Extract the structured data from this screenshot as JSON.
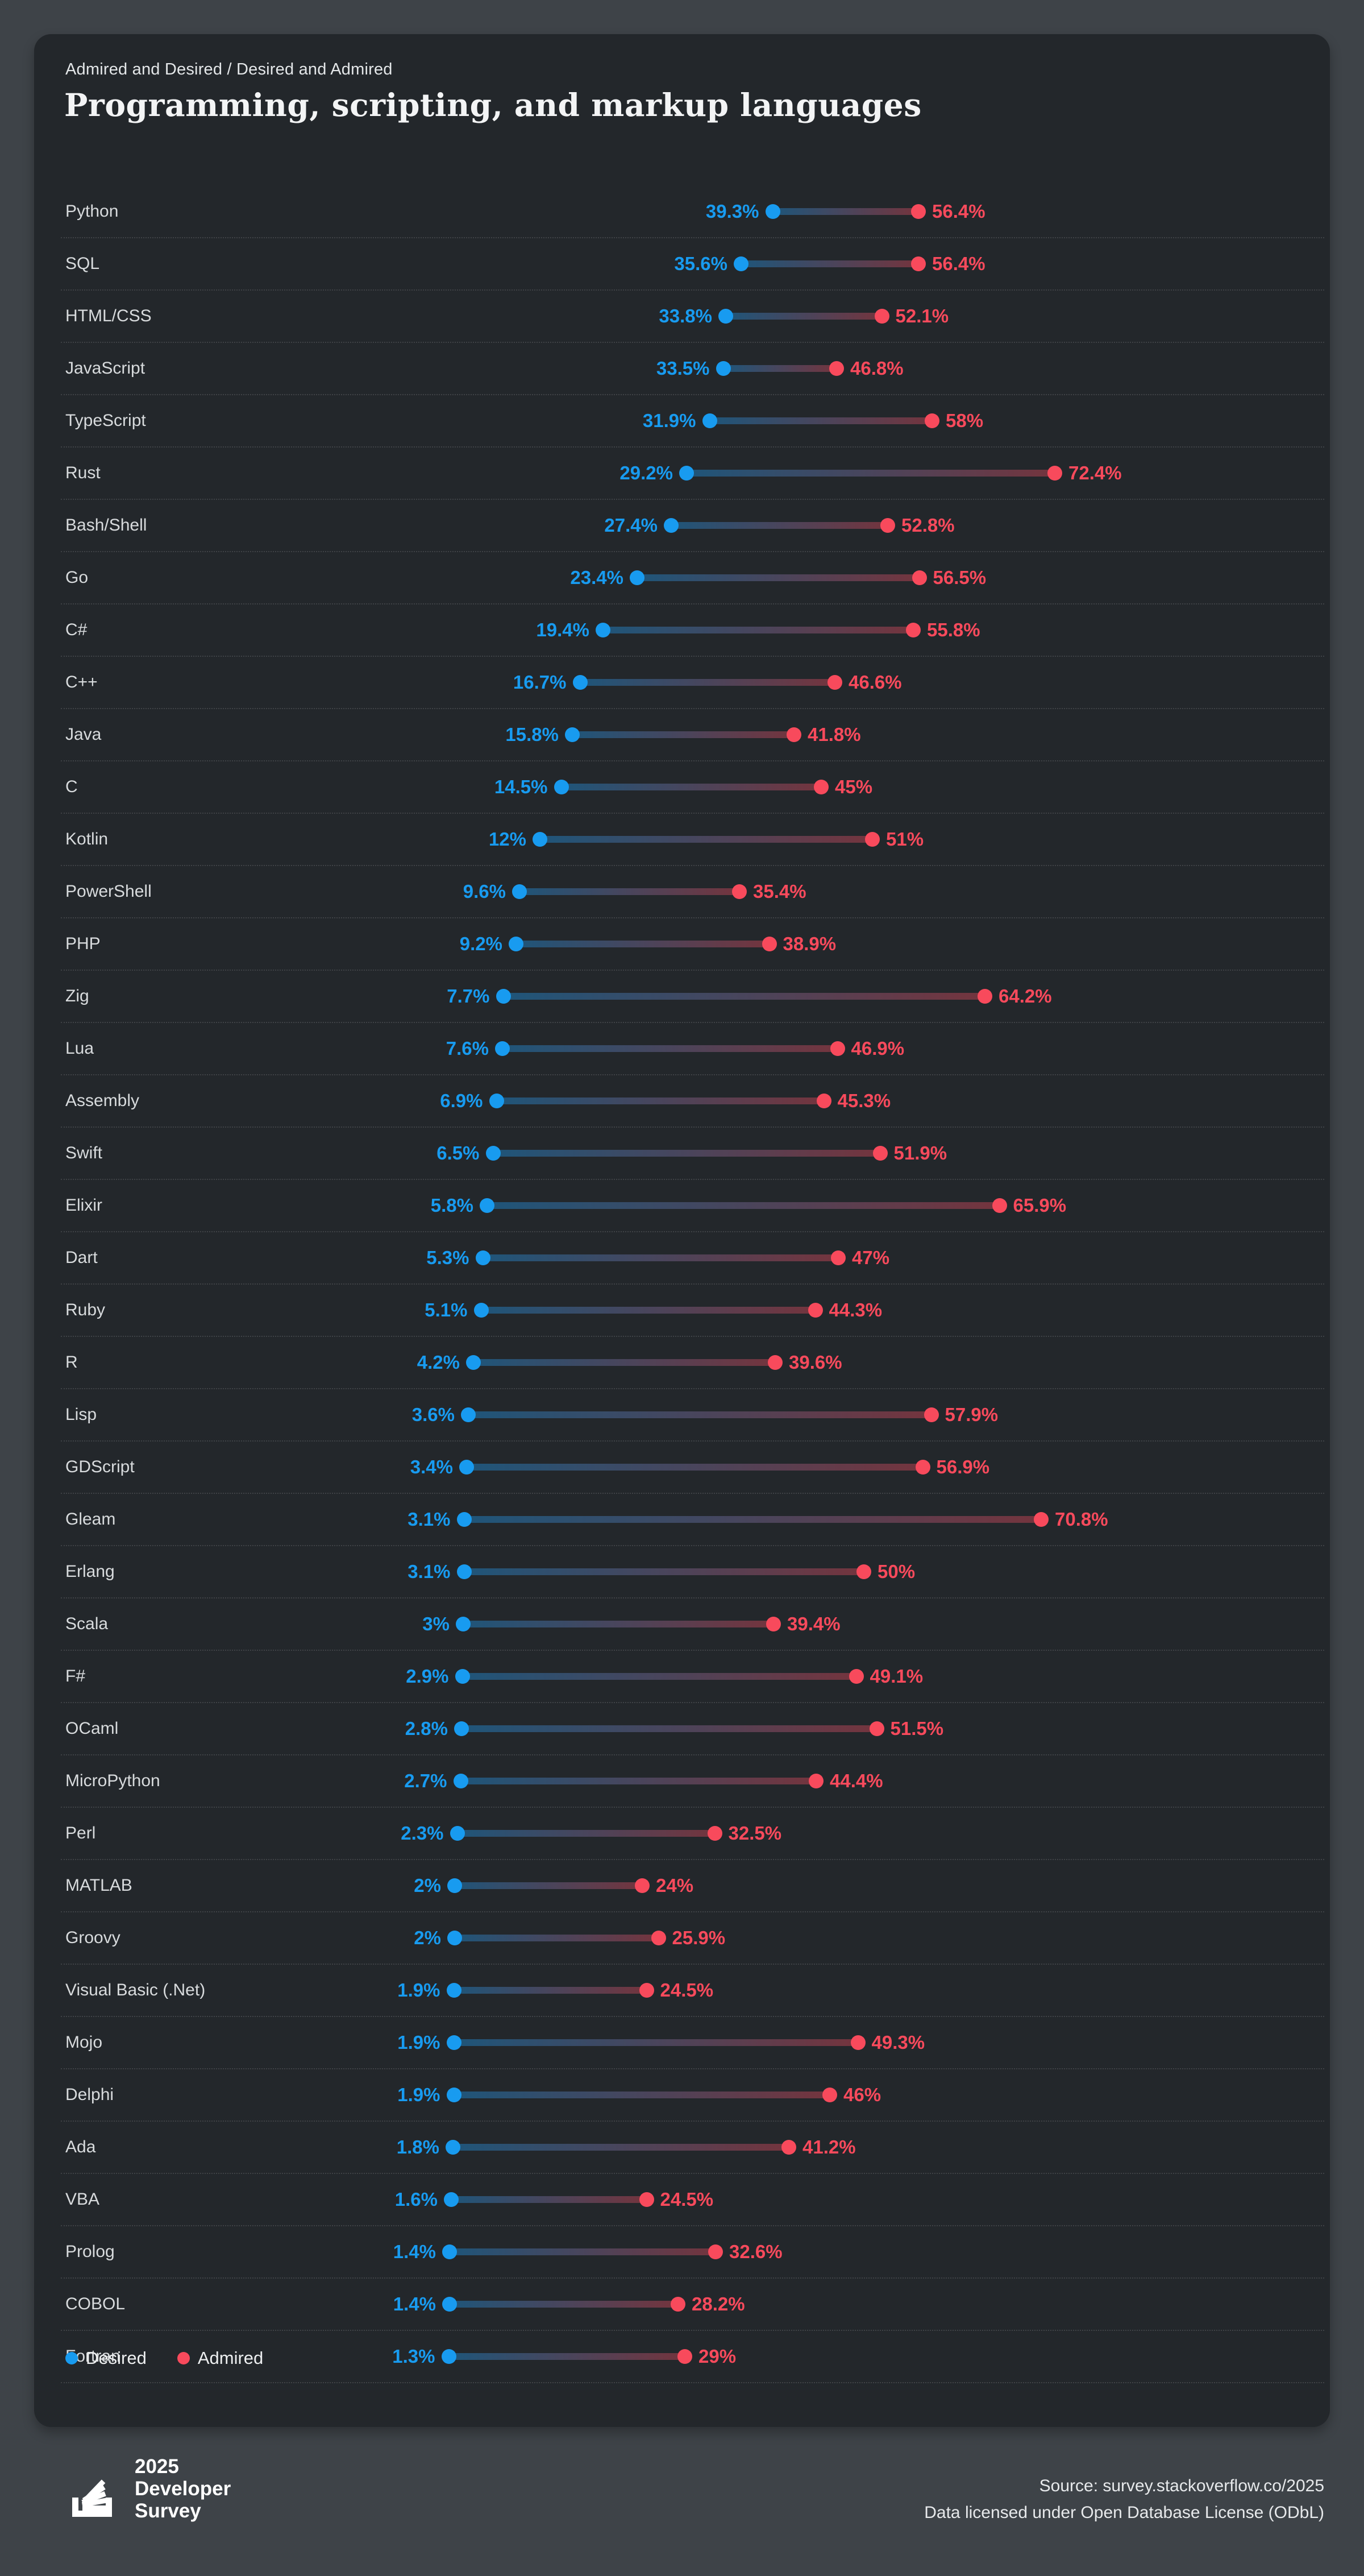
{
  "header": {
    "kicker": "Admired and Desired / Desired and Admired",
    "title": "Programming, scripting, and markup languages"
  },
  "colors": {
    "desired": "#189BF0",
    "admired": "#F84A5C",
    "card_bg": "#23272B",
    "page_bg": "#3E4348"
  },
  "legend": {
    "desired_label": "Desired",
    "admired_label": "Admired"
  },
  "chart_data": {
    "type": "dumbbell",
    "title": "Programming, scripting, and markup languages",
    "subtitle": "Admired and Desired / Desired and Admired",
    "xlim": [
      0,
      80
    ],
    "grid": false,
    "legend_position": "bottom-left",
    "categories": [
      "Python",
      "SQL",
      "HTML/CSS",
      "JavaScript",
      "TypeScript",
      "Rust",
      "Bash/Shell",
      "Go",
      "C#",
      "C++",
      "Java",
      "C",
      "Kotlin",
      "PowerShell",
      "PHP",
      "Zig",
      "Lua",
      "Assembly",
      "Swift",
      "Elixir",
      "Dart",
      "Ruby",
      "R",
      "Lisp",
      "GDScript",
      "Gleam",
      "Erlang",
      "Scala",
      "F#",
      "OCaml",
      "MicroPython",
      "Perl",
      "MATLAB",
      "Groovy",
      "Visual Basic (.Net)",
      "Mojo",
      "Delphi",
      "Ada",
      "VBA",
      "Prolog",
      "COBOL",
      "Fortran"
    ],
    "series": [
      {
        "name": "Desired",
        "color": "#189BF0",
        "values": [
          39.3,
          35.6,
          33.8,
          33.5,
          31.9,
          29.2,
          27.4,
          23.4,
          19.4,
          16.7,
          15.8,
          14.5,
          12,
          9.6,
          9.2,
          7.7,
          7.6,
          6.9,
          6.5,
          5.8,
          5.3,
          5.1,
          4.2,
          3.6,
          3.4,
          3.1,
          3.1,
          3,
          2.9,
          2.8,
          2.7,
          2.3,
          2,
          2,
          1.9,
          1.9,
          1.9,
          1.8,
          1.6,
          1.4,
          1.4,
          1.3
        ]
      },
      {
        "name": "Admired",
        "color": "#F84A5C",
        "values": [
          56.4,
          56.4,
          52.1,
          46.8,
          58,
          72.4,
          52.8,
          56.5,
          55.8,
          46.6,
          41.8,
          45,
          51,
          35.4,
          38.9,
          64.2,
          46.9,
          45.3,
          51.9,
          65.9,
          47,
          44.3,
          39.6,
          57.9,
          56.9,
          70.8,
          50,
          39.4,
          49.1,
          51.5,
          44.4,
          32.5,
          24,
          25.9,
          24.5,
          49.3,
          46,
          41.2,
          24.5,
          32.6,
          28.2,
          29
        ]
      }
    ]
  },
  "footer": {
    "logo_lines": "2025\nDeveloper\nSurvey",
    "source_line1": "Source: survey.stackoverflow.co/2025",
    "source_line2": "Data licensed under Open Database License (ODbL)"
  }
}
